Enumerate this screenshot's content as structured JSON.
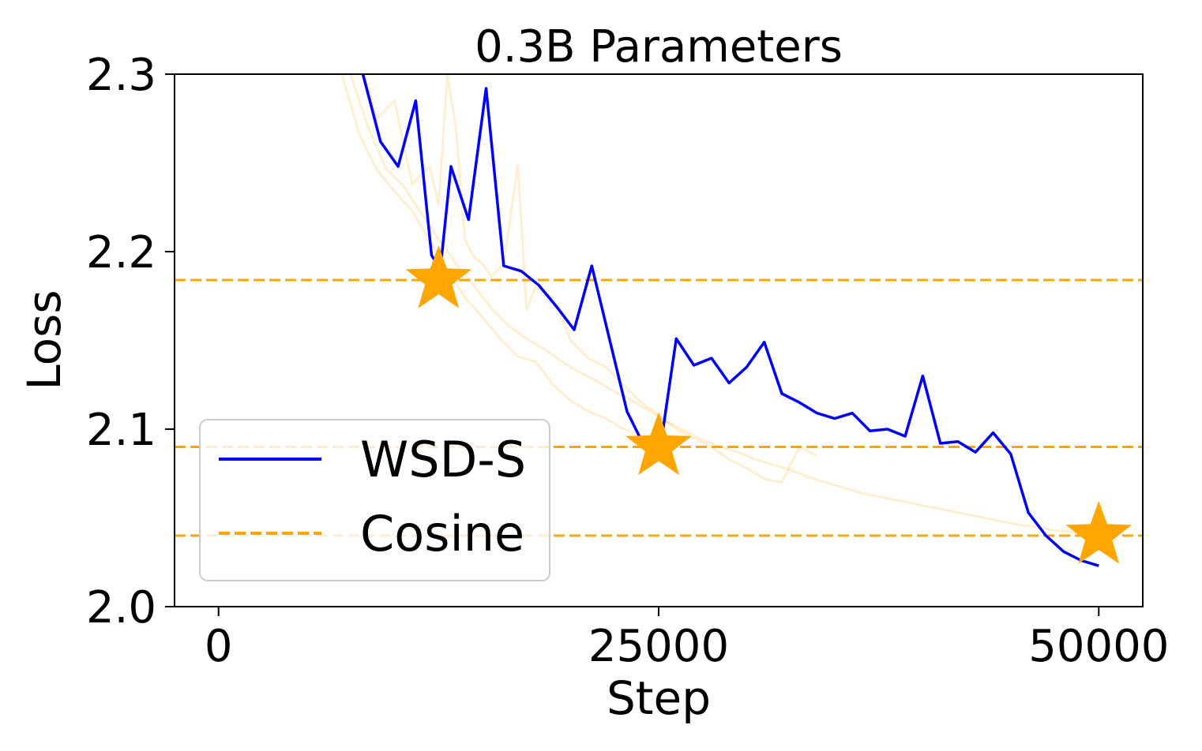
{
  "chart_data": {
    "type": "line",
    "title": "0.3B Parameters",
    "xlabel": "Step",
    "ylabel": "Loss",
    "xlim": [
      -2500,
      52500
    ],
    "ylim": [
      2.0,
      2.3
    ],
    "xticks": [
      0,
      25000,
      50000
    ],
    "xtick_labels": [
      "0",
      "25000",
      "50000"
    ],
    "yticks": [
      2.0,
      2.1,
      2.2,
      2.3
    ],
    "ytick_labels": [
      "2.0",
      "2.1",
      "2.2",
      "2.3"
    ],
    "grid": false,
    "legend_position": "lower-left",
    "series": [
      {
        "name": "WSD-S",
        "color": "#0000ff",
        "style": "solid",
        "x": [
          8200,
          9200,
          10200,
          11200,
          12100,
          12600,
          13200,
          14200,
          15200,
          16200,
          17200,
          18200,
          19200,
          20200,
          21200,
          22200,
          23200,
          24200,
          25000,
          26000,
          27000,
          28000,
          29000,
          30000,
          31000,
          32000,
          33000,
          34000,
          35000,
          36000,
          37000,
          38000,
          39000,
          40000,
          41000,
          42000,
          43000,
          44000,
          45000,
          46000,
          47000,
          48000,
          49000,
          50000
        ],
        "y": [
          2.3,
          2.262,
          2.248,
          2.285,
          2.198,
          2.19,
          2.248,
          2.218,
          2.292,
          2.192,
          2.189,
          2.181,
          2.169,
          2.156,
          2.192,
          2.151,
          2.11,
          2.09,
          2.083,
          2.151,
          2.136,
          2.14,
          2.126,
          2.135,
          2.149,
          2.12,
          2.115,
          2.109,
          2.106,
          2.109,
          2.099,
          2.1,
          2.096,
          2.13,
          2.092,
          2.093,
          2.087,
          2.098,
          2.086,
          2.053,
          2.04,
          2.031,
          2.026,
          2.023
        ]
      },
      {
        "name": "Cosine",
        "color": "#ffa500",
        "style": "dashed",
        "levels": [
          2.184,
          2.09,
          2.04
        ],
        "star_x": [
          12500,
          25000,
          50000
        ]
      }
    ],
    "faint_series": [
      {
        "color": "#ffa500",
        "opacity": 0.18,
        "x": [
          7000,
          8000,
          9000,
          10000,
          11000,
          12000,
          13000,
          14000,
          15000,
          16000,
          17000,
          18000,
          19000,
          20000,
          21000,
          22000,
          23000,
          24000,
          25000
        ],
        "y": [
          2.3,
          2.266,
          2.246,
          2.234,
          2.223,
          2.206,
          2.19,
          2.174,
          2.163,
          2.151,
          2.141,
          2.138,
          2.125,
          2.116,
          2.11,
          2.106,
          2.1,
          2.096,
          2.092
        ]
      },
      {
        "color": "#ffa500",
        "opacity": 0.18,
        "x": [
          7500,
          8500,
          9500,
          10500,
          11500,
          12500,
          13500,
          14500,
          15500,
          16500,
          17500,
          18500,
          19500,
          20500,
          21500,
          22500,
          23500,
          24500,
          25500,
          26500,
          27500,
          28500,
          29500,
          30500,
          31500,
          32500,
          33500,
          34500,
          35500,
          36500,
          37500,
          38500,
          39500,
          40500,
          41500,
          42500,
          43500,
          44500,
          45500,
          46500,
          47500,
          48500,
          49500
        ],
        "y": [
          2.3,
          2.27,
          2.247,
          2.237,
          2.222,
          2.207,
          2.193,
          2.181,
          2.168,
          2.158,
          2.151,
          2.145,
          2.138,
          2.132,
          2.127,
          2.121,
          2.116,
          2.11,
          2.104,
          2.099,
          2.094,
          2.09,
          2.087,
          2.083,
          2.08,
          2.077,
          2.073,
          2.07,
          2.067,
          2.064,
          2.062,
          2.06,
          2.058,
          2.056,
          2.054,
          2.052,
          2.05,
          2.048,
          2.046,
          2.045,
          2.043,
          2.042,
          2.04
        ]
      },
      {
        "color": "#ffa500",
        "opacity": 0.18,
        "x": [
          8300,
          9000,
          10000,
          11000,
          12000,
          12500,
          13000,
          13500,
          14000,
          14500,
          15000,
          15500,
          16200,
          17000,
          17500,
          18000,
          19000,
          20000,
          21000,
          22000,
          23000,
          24000,
          25000,
          26000,
          27000,
          28000,
          29000,
          30000,
          31000,
          32000,
          33000,
          34000
        ],
        "y": [
          2.3,
          2.275,
          2.285,
          2.238,
          2.248,
          2.226,
          2.3,
          2.268,
          2.207,
          2.197,
          2.193,
          2.186,
          2.193,
          2.249,
          2.167,
          2.18,
          2.174,
          2.15,
          2.14,
          2.135,
          2.125,
          2.115,
          2.108,
          2.1,
          2.095,
          2.09,
          2.083,
          2.078,
          2.072,
          2.07,
          2.09,
          2.085
        ]
      }
    ]
  }
}
